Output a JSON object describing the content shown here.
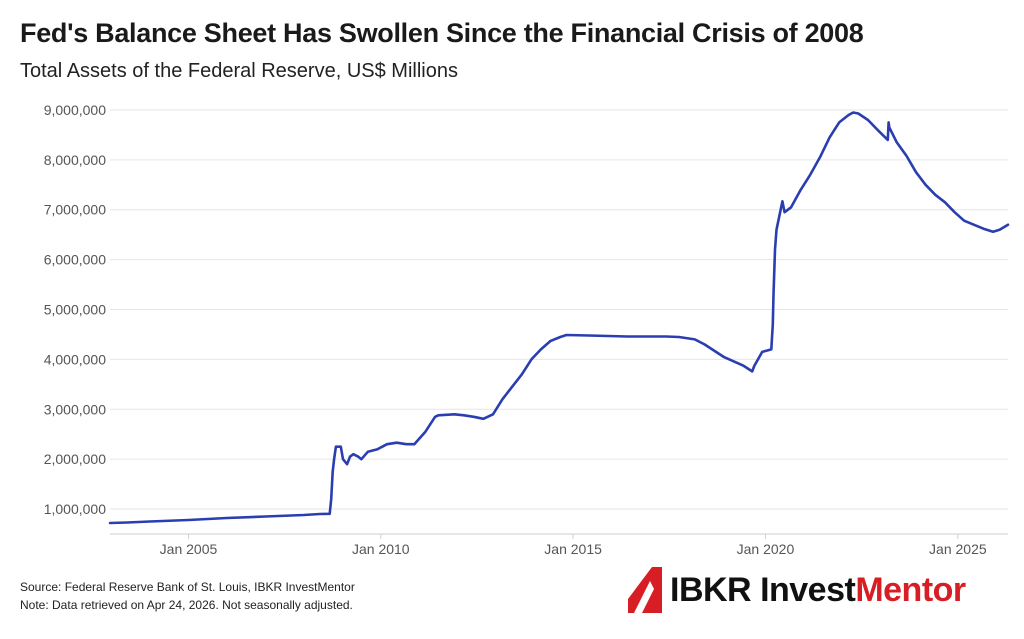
{
  "title": "Fed's Balance Sheet Has Swollen Since the Financial Crisis of 2008",
  "subtitle": "Total Assets of the Federal Reserve, US$ Millions",
  "footer": {
    "source": "Source: Federal Reserve Bank of St. Louis, IBKR InvestMentor",
    "note": "Note: Data retrieved on Apr 24, 2026. Not seasonally adjusted."
  },
  "logo": {
    "part1": "IBKR ",
    "part2": "Invest",
    "part3": "Mentor",
    "colors": {
      "mark": "#d81e25",
      "text": "#111111",
      "accent": "#d81e25"
    }
  },
  "colors": {
    "line": "#2a3eb1",
    "grid": "#e6e6e6",
    "tick": "#555555"
  },
  "chart_data": {
    "type": "line",
    "title": "Fed's Balance Sheet Has Swollen Since the Financial Crisis of 2008",
    "subtitle": "Total Assets of the Federal Reserve, US$ Millions",
    "xlabel": "",
    "ylabel": "",
    "grid": true,
    "xlim": [
      "2002-12-18",
      "2026-04-22"
    ],
    "ylim": [
      500000,
      9200000
    ],
    "yticks": [
      1000000,
      2000000,
      3000000,
      4000000,
      5000000,
      6000000,
      7000000,
      8000000,
      9000000
    ],
    "ytick_labels": [
      "1,000,000",
      "2,000,000",
      "3,000,000",
      "4,000,000",
      "5,000,000",
      "6,000,000",
      "7,000,000",
      "8,000,000",
      "9,000,000"
    ],
    "xticks": [
      "2005-01-01",
      "2010-01-01",
      "2015-01-01",
      "2020-01-01",
      "2025-01-01"
    ],
    "xtick_labels": [
      "Jan 2005",
      "Jan 2010",
      "Jan 2015",
      "Jan 2020",
      "Jan 2025"
    ],
    "series": [
      {
        "name": "",
        "x": [
          "2002-12-18",
          "2003-06-01",
          "2004-01-01",
          "2005-01-01",
          "2006-01-01",
          "2007-01-01",
          "2008-01-01",
          "2008-06-01",
          "2008-09-03",
          "2008-09-17",
          "2008-10-01",
          "2008-10-15",
          "2008-11-01",
          "2008-12-17",
          "2009-01-07",
          "2009-02-15",
          "2009-03-15",
          "2009-04-15",
          "2009-06-01",
          "2009-07-01",
          "2009-09-01",
          "2009-12-01",
          "2010-03-01",
          "2010-06-01",
          "2010-09-01",
          "2010-11-15",
          "2011-03-01",
          "2011-06-01",
          "2011-07-01",
          "2011-12-01",
          "2012-03-01",
          "2012-06-01",
          "2012-09-01",
          "2012-12-01",
          "2013-03-01",
          "2013-06-01",
          "2013-09-01",
          "2013-12-01",
          "2014-03-01",
          "2014-06-01",
          "2014-09-01",
          "2014-10-29",
          "2015-06-01",
          "2016-06-01",
          "2017-06-01",
          "2017-10-01",
          "2018-03-01",
          "2018-06-01",
          "2018-12-01",
          "2019-06-01",
          "2019-08-28",
          "2019-09-17",
          "2019-12-01",
          "2020-02-26",
          "2020-03-11",
          "2020-03-18",
          "2020-04-01",
          "2020-04-15",
          "2020-06-10",
          "2020-07-01",
          "2020-09-01",
          "2020-12-01",
          "2021-03-01",
          "2021-06-01",
          "2021-09-01",
          "2021-12-01",
          "2022-03-01",
          "2022-04-13",
          "2022-06-01",
          "2022-09-01",
          "2022-12-01",
          "2023-03-08",
          "2023-03-15",
          "2023-03-22",
          "2023-06-01",
          "2023-09-01",
          "2023-12-01",
          "2024-03-01",
          "2024-06-01",
          "2024-09-01",
          "2024-12-01",
          "2025-03-01",
          "2025-06-01",
          "2025-09-01",
          "2025-12-01",
          "2026-02-01",
          "2026-04-22"
        ],
        "values": [
          720000,
          730000,
          750000,
          780000,
          820000,
          850000,
          880000,
          900000,
          905000,
          1200000,
          1750000,
          2000000,
          2250000,
          2250000,
          2000000,
          1900000,
          2050000,
          2100000,
          2050000,
          2000000,
          2150000,
          2200000,
          2300000,
          2330000,
          2300000,
          2300000,
          2550000,
          2850000,
          2880000,
          2900000,
          2880000,
          2850000,
          2810000,
          2900000,
          3200000,
          3450000,
          3700000,
          4000000,
          4200000,
          4370000,
          4450000,
          4490000,
          4480000,
          4460000,
          4460000,
          4450000,
          4400000,
          4300000,
          4050000,
          3880000,
          3760000,
          3870000,
          4150000,
          4200000,
          4700000,
          5300000,
          6200000,
          6600000,
          7170000,
          6950000,
          7050000,
          7400000,
          7700000,
          8050000,
          8450000,
          8750000,
          8900000,
          8950000,
          8930000,
          8800000,
          8600000,
          8400000,
          8750000,
          8650000,
          8350000,
          8080000,
          7750000,
          7500000,
          7300000,
          7150000,
          6950000,
          6780000,
          6700000,
          6620000,
          6560000,
          6600000,
          6700000
        ]
      }
    ]
  }
}
